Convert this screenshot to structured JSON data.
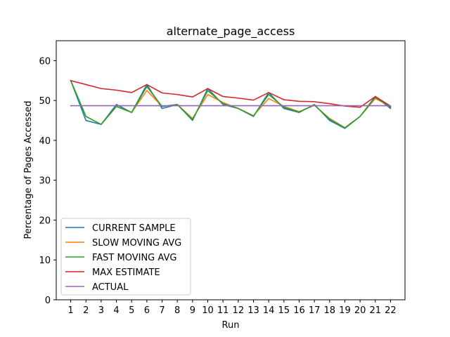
{
  "chart_data": {
    "type": "line",
    "title": "alternate_page_access",
    "xlabel": "Run",
    "ylabel": "Percentage of Pages Accessed",
    "x": [
      1,
      2,
      3,
      4,
      5,
      6,
      7,
      8,
      9,
      10,
      11,
      12,
      13,
      14,
      15,
      16,
      17,
      18,
      19,
      20,
      21,
      22
    ],
    "x_tick_labels": [
      "1",
      "2",
      "3",
      "4",
      "5",
      "6",
      "7",
      "8",
      "9",
      "10",
      "11",
      "12",
      "13",
      "14",
      "15",
      "16",
      "17",
      "18",
      "19",
      "20",
      "21",
      "22"
    ],
    "ylim": [
      0,
      65
    ],
    "y_ticks": [
      0,
      10,
      20,
      30,
      40,
      50,
      60
    ],
    "y_tick_labels": [
      "0",
      "10",
      "20",
      "30",
      "40",
      "50",
      "60"
    ],
    "grid": false,
    "legend_position": "lower-left",
    "series": [
      {
        "name": "CURRENT SAMPLE",
        "color": "#1f77b4",
        "values": [
          55,
          45,
          44,
          49,
          47,
          54,
          48,
          49,
          45,
          53,
          49,
          48,
          46,
          52,
          48,
          47,
          49,
          45,
          43,
          46,
          51,
          48
        ]
      },
      {
        "name": "SLOW MOVING AVG",
        "color": "#ff7f0e",
        "values": [
          55,
          46,
          44,
          48.5,
          47,
          52.5,
          48.5,
          49,
          45.5,
          51.5,
          49.5,
          48,
          46.2,
          50.5,
          48.5,
          47.2,
          48.8,
          45.5,
          43.2,
          46,
          50.5,
          48.5
        ]
      },
      {
        "name": "FAST MOVING AVG",
        "color": "#2ca02c",
        "values": [
          55,
          46,
          44,
          48.5,
          47,
          53.5,
          48.5,
          49,
          45.2,
          52.5,
          49.2,
          48,
          46.1,
          51.5,
          48.3,
          47.1,
          48.9,
          45.3,
          43.1,
          46,
          50.8,
          48.3
        ]
      },
      {
        "name": "MAX ESTIMATE",
        "color": "#d62728",
        "values": [
          55,
          54,
          53,
          52.6,
          52,
          54,
          51.9,
          51.5,
          50.9,
          53,
          51,
          50.6,
          50.1,
          52,
          50.2,
          49.8,
          49.7,
          49.2,
          48.6,
          48.3,
          51,
          48.6
        ]
      },
      {
        "name": "ACTUAL",
        "color": "#9467bd",
        "values": [
          48.7,
          48.7,
          48.7,
          48.7,
          48.7,
          48.7,
          48.7,
          48.7,
          48.7,
          48.7,
          48.7,
          48.7,
          48.7,
          48.7,
          48.7,
          48.7,
          48.7,
          48.7,
          48.7,
          48.7,
          48.7,
          48.7
        ]
      }
    ]
  }
}
